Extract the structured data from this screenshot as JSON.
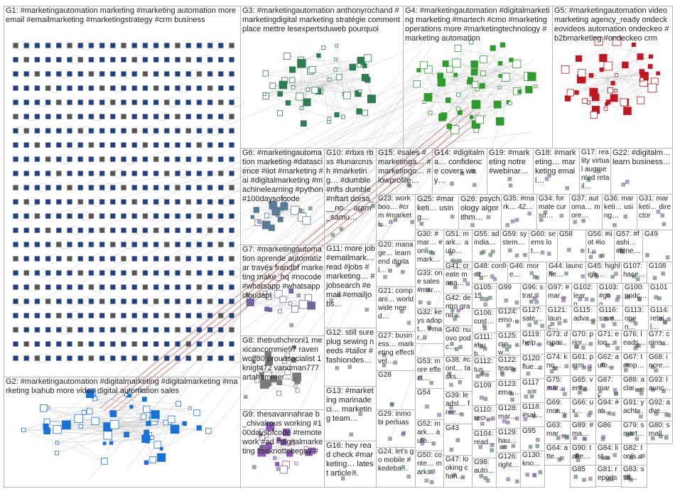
{
  "colors": {
    "background": "#ffffff",
    "box_border": "#b8b8b8",
    "edge": "#c9c9c9",
    "edge_highlight": "#c46a6a",
    "node_fill": "#1e3f8a",
    "node_border": "#8c8c8c",
    "text": "#1f1f1f",
    "g3_node": "#2e7d4f",
    "g4_node": "#2d9b2d",
    "g5_node": "#c0161f",
    "g2_node": "#1a72d8"
  },
  "groups": [
    {
      "id": "G1",
      "label": "G1: #marketingautomation marketing #marketing automation more email #emailmarketing #marketingstrategy #crm business"
    },
    {
      "id": "G2",
      "label": "G2: #marketingautomation #digitalmarketing #digitalmarketing #marketing lxahub more video digital automation sales"
    },
    {
      "id": "G3",
      "label": "G3: #marketingautomation anthonyrochand #marketingdigital marketing stratégie comment place mettre lesexpertsduweb pourquoi"
    },
    {
      "id": "G4",
      "label": "G4: #marketingautomation #digitalmarketing marketing #martech #cmo #marketingoperations more #marketingtechnology #marketing automation"
    },
    {
      "id": "G5",
      "label": "G5: #marketingautomation video marketing agency_ready ondeckeovideos automation ondeckeo #b2bmarketing #ondeckeo crm"
    },
    {
      "id": "G6",
      "label": "G6: #marketingautomation marketing #datascience #iiot #marketing #ai #digitalmarketing #machinelearning #python #100daysofcode"
    },
    {
      "id": "G7",
      "label": "G7: #marketingautomation aprende automatizar través frandbf marketing make_hq #nocode #whatsapp #whatsappcloudapi"
    },
    {
      "id": "G8",
      "label": "G8: thetruthchroni1 mexicancommie97 ravenwolf80 proudsocialist 1knight72 vandman777 artahammer…"
    },
    {
      "id": "G9",
      "label": "G9: thesavannahrae b_chivalrous working #100daysofcode #remotework #ad #digitalmarketing itsoknottobegay #"
    },
    {
      "id": "G10",
      "label": "G10: #rbxs rbxs #lunarcrush #marketing… #dumble #nfts dumble #nftart dorsa___no… aram_samu…"
    },
    {
      "id": "G11",
      "label": "G11: more job #emailmark… read #jobs #marketing… #jobsearch #email #emailjobs…"
    },
    {
      "id": "G12",
      "label": "G12: still sure plug sewing needs #tailor #fashiondes…"
    },
    {
      "id": "G13",
      "label": "G13: #marketing marinadeci… marketing team…"
    },
    {
      "id": "G14",
      "label": "G14: #digitalma… confidence covers way…"
    },
    {
      "id": "G15",
      "label": "G15: #sales #marketinga… #marketingo… #lowprofile…"
    },
    {
      "id": "G16",
      "label": "G16: hey read check #marketing… latest article…"
    },
    {
      "id": "G17",
      "label": "G17: reality virtual augmented retail…"
    },
    {
      "id": "G18",
      "label": "G18: #marketing… marketing email…"
    },
    {
      "id": "G19",
      "label": "G19: #marketing notre #webinar…"
    },
    {
      "id": "G20",
      "label": "G20: manage… learn end digital…"
    },
    {
      "id": "G21",
      "label": "G21: compani… worldwide need…"
    },
    {
      "id": "G22",
      "label": "G22: #digitalm… learn business…"
    },
    {
      "id": "G23",
      "label": "G23: workboo… #crm #marketi…"
    },
    {
      "id": "G24",
      "label": "G24: let's go mobile #kedeba…"
    },
    {
      "id": "G25",
      "label": "G25: #marketi… using…"
    },
    {
      "id": "G26",
      "label": "G26: psychology algorithm…"
    },
    {
      "id": "G27",
      "label": "G27: business… marketing effectivel…"
    },
    {
      "id": "G28",
      "label": "G28"
    },
    {
      "id": "G29",
      "label": "G29: inmobi perluas"
    },
    {
      "id": "G30",
      "label": "G30: #mar… #onli… mark…"
    },
    {
      "id": "G31",
      "label": "G31: marketi… director"
    },
    {
      "id": "G32",
      "label": "G32: keys adopt… #mar…"
    },
    {
      "id": "G33",
      "label": "G33: one sales #mar…"
    },
    {
      "id": "G34",
      "label": "G34: formate curso…"
    },
    {
      "id": "G35",
      "label": "G35: #mark… 42…"
    },
    {
      "id": "G36",
      "label": "G36: marketi… using…"
    },
    {
      "id": "G37",
      "label": "G37: automa… more…"
    },
    {
      "id": "G38",
      "label": "G38: #cont… tasks…"
    },
    {
      "id": "G39",
      "label": "G39: leadsl… free…"
    },
    {
      "id": "G40",
      "label": "G40: nuovo podc…"
    },
    {
      "id": "G41",
      "label": "G41: create mana…"
    },
    {
      "id": "G42",
      "label": "G42: dentro grand…"
    },
    {
      "id": "G43",
      "label": "G43"
    },
    {
      "id": "G44",
      "label": "G44: launche…"
    },
    {
      "id": "G45",
      "label": "G45: highligh…"
    },
    {
      "id": "G46",
      "label": "G46: more…"
    },
    {
      "id": "G47",
      "label": "G47: looking chan…"
    },
    {
      "id": "G48",
      "label": "G48: confiez…"
    },
    {
      "id": "G49",
      "label": "G49"
    },
    {
      "id": "G50",
      "label": "G50: conte… mark…"
    },
    {
      "id": "G51",
      "label": "G51: mark… auto…"
    },
    {
      "id": "G52",
      "label": "G52: mark… auto…"
    },
    {
      "id": "G53",
      "label": "G53: more effect…"
    },
    {
      "id": "G54",
      "label": "G54"
    },
    {
      "id": "G55",
      "label": "G55: ad india…"
    },
    {
      "id": "G56",
      "label": "G56: #iiot #iot…"
    },
    {
      "id": "G57",
      "label": "G57: #fashi… #fitne…"
    },
    {
      "id": "G58",
      "label": "G58"
    },
    {
      "id": "G59",
      "label": "G59: system…"
    },
    {
      "id": "G60",
      "label": "G60: seems lot…"
    },
    {
      "id": "G61",
      "label": "G61: perm…"
    },
    {
      "id": "G62",
      "label": "G62: auto…"
    },
    {
      "id": "G63",
      "label": "G63: mar…"
    },
    {
      "id": "G64",
      "label": "G64: atte…"
    },
    {
      "id": "G65",
      "label": "G65: vent…"
    },
    {
      "id": "G66",
      "label": "G66: ux…"
    },
    {
      "id": "G67",
      "label": "G67: temp…"
    },
    {
      "id": "G68",
      "label": "G68: incre…"
    },
    {
      "id": "G69",
      "label": "G69: mor…"
    },
    {
      "id": "G70",
      "label": "G70: prior…"
    },
    {
      "id": "G71",
      "label": "G71: eloq…"
    },
    {
      "id": "G73",
      "label": "G73: dispa…"
    },
    {
      "id": "G74",
      "label": "G74: kno…"
    },
    {
      "id": "G75",
      "label": "G75: mar…"
    },
    {
      "id": "G76",
      "label": "G76: leads…"
    },
    {
      "id": "G77",
      "label": "G77: coins…"
    },
    {
      "id": "G79",
      "label": "G79: smart…"
    },
    {
      "id": "G80",
      "label": "G80: small…"
    },
    {
      "id": "G81",
      "label": "G81: reports"
    },
    {
      "id": "G82",
      "label": "G82: tools…"
    },
    {
      "id": "G83",
      "label": "G83: stiff…"
    },
    {
      "id": "G84",
      "label": "G84: list…"
    },
    {
      "id": "G85",
      "label": "G85"
    },
    {
      "id": "G86",
      "label": "G86"
    },
    {
      "id": "G87",
      "label": "G87: mark…"
    },
    {
      "id": "G88",
      "label": "G88: aclar…"
    },
    {
      "id": "G89",
      "label": "G89: #ma…"
    },
    {
      "id": "G90",
      "label": "G90: take…"
    },
    {
      "id": "G91",
      "label": "G91: yacht…"
    },
    {
      "id": "G92",
      "label": "G92: adve…"
    },
    {
      "id": "G93",
      "label": "G93: launc…"
    },
    {
      "id": "G94",
      "label": "G94: #a'…"
    },
    {
      "id": "G95",
      "label": "G95"
    },
    {
      "id": "G96",
      "label": "G96: strat…"
    },
    {
      "id": "G97",
      "label": "G97: #mar…"
    },
    {
      "id": "G98",
      "label": "G98: auto…"
    },
    {
      "id": "G99",
      "label": "G99"
    },
    {
      "id": "G100",
      "label": "G100: podc…"
    },
    {
      "id": "G101",
      "label": "G101"
    },
    {
      "id": "G102",
      "label": "G102: learn…"
    },
    {
      "id": "G103",
      "label": "G103: #goo…"
    },
    {
      "id": "G104",
      "label": "G104: read…"
    },
    {
      "id": "G105",
      "label": "G105: 15…"
    },
    {
      "id": "G106",
      "label": "G106: cust…"
    },
    {
      "id": "G107",
      "label": "G107: hace…"
    },
    {
      "id": "G108",
      "label": "G108"
    },
    {
      "id": "G109",
      "label": "G109"
    },
    {
      "id": "G110",
      "label": "G110: recr…"
    },
    {
      "id": "G111",
      "label": "G111: #hub…"
    },
    {
      "id": "G112",
      "label": "G112: tus…"
    },
    {
      "id": "G113",
      "label": "G113: open…"
    },
    {
      "id": "G114",
      "label": "G114: retail…"
    },
    {
      "id": "G115",
      "label": "G115: adva…"
    },
    {
      "id": "G116",
      "label": "G116: save…"
    },
    {
      "id": "G117",
      "label": "G117"
    },
    {
      "id": "G118",
      "label": "G118: #sal…"
    },
    {
      "id": "G119",
      "label": "G119: help…"
    },
    {
      "id": "G120",
      "label": "G120: flue…"
    },
    {
      "id": "G121",
      "label": "G121: launc…"
    },
    {
      "id": "G122",
      "label": "G122: team"
    },
    {
      "id": "G123",
      "label": "G123: ema…"
    },
    {
      "id": "G124",
      "label": "G124: emo…"
    },
    {
      "id": "G125",
      "label": "G125: crow…"
    },
    {
      "id": "G126",
      "label": "G126: right…"
    },
    {
      "id": "G127",
      "label": "G127: sale…"
    },
    {
      "id": "G128",
      "label": "G128: mar…"
    },
    {
      "id": "G129",
      "label": "G129: hau…"
    },
    {
      "id": "G130",
      "label": "G130: kno…"
    }
  ]
}
